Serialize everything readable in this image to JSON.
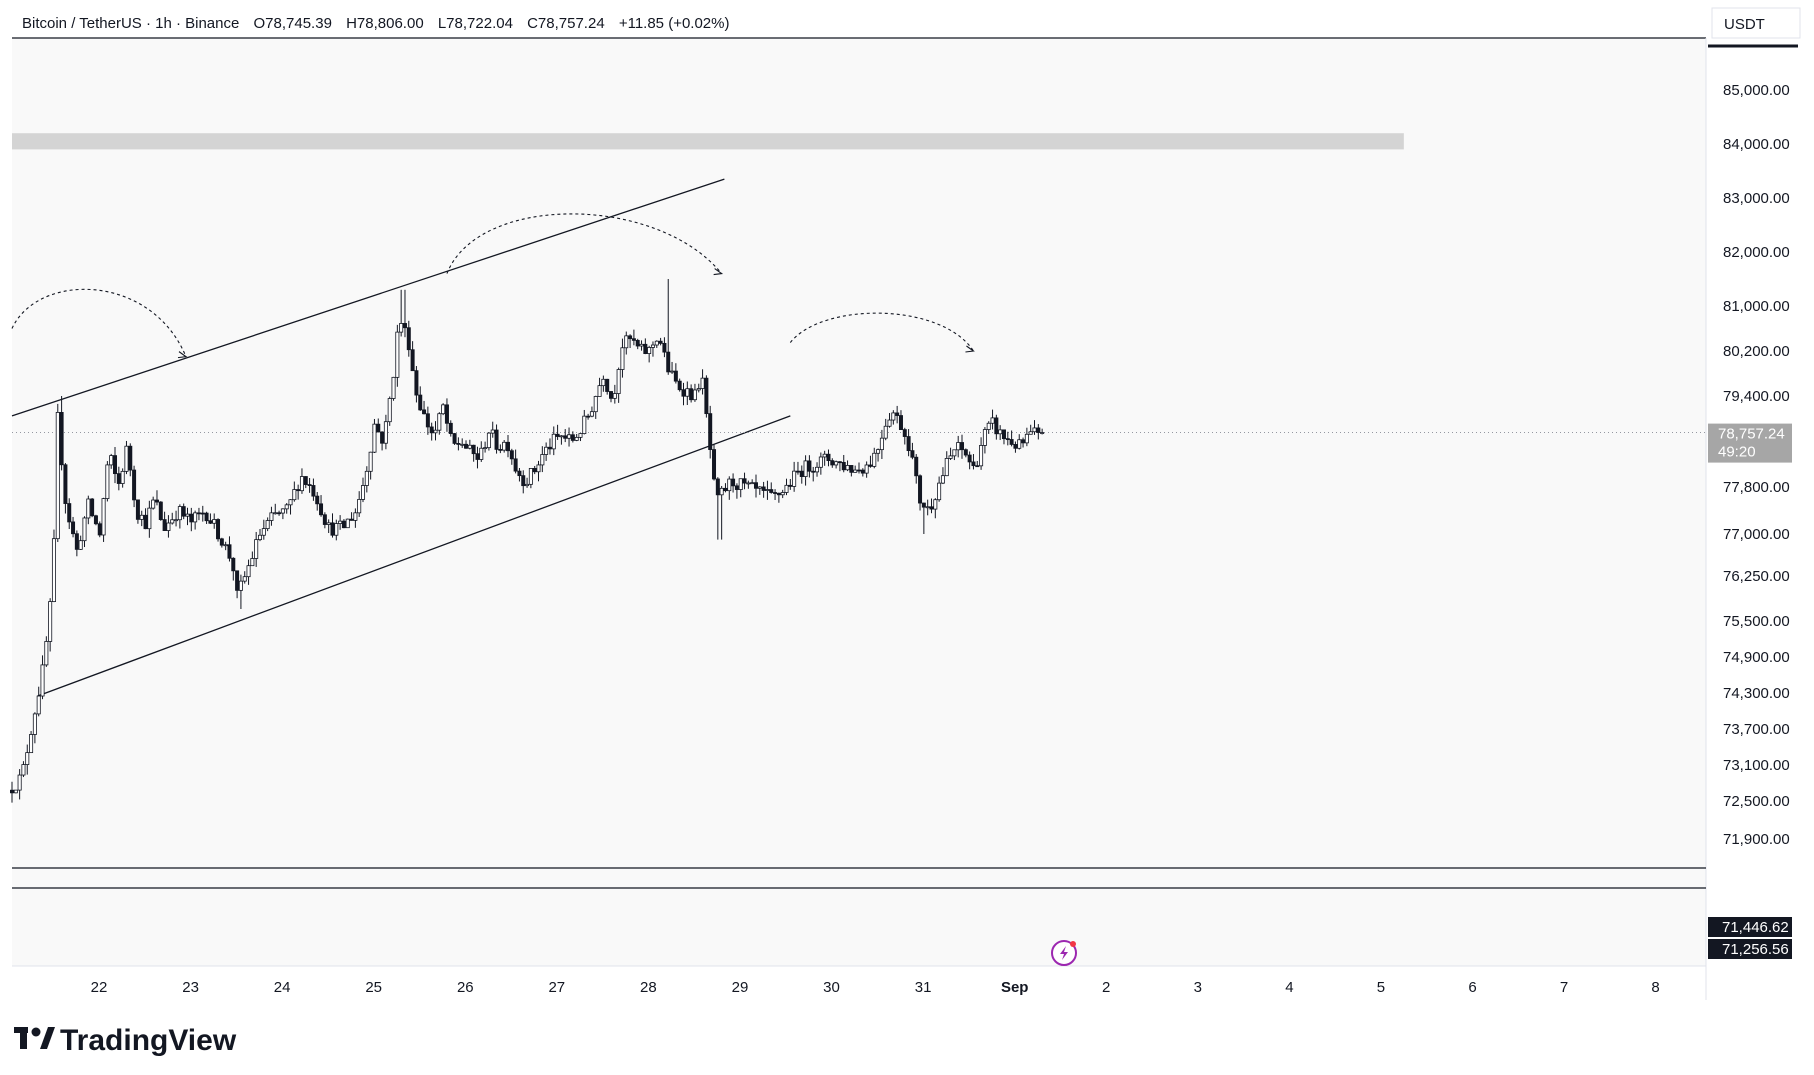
{
  "header": {
    "symbol": "Bitcoin / TetherUS · 1h · Binance",
    "open": "O78,745.39",
    "high": "H78,806.00",
    "low": "L78,722.04",
    "close": "C78,757.24",
    "change": "+11.85 (+0.02%)"
  },
  "price_axis": {
    "currency": "USDT",
    "current_price": "78,757.24",
    "countdown": "49:20",
    "tag_1": "71,446.62",
    "tag_2": "71,256.56"
  },
  "brand": {
    "name": "TradingView",
    "icon": "tradingview-logo-icon"
  },
  "colors": {
    "candle": "#131722",
    "zone": "#d4d4d4",
    "plot_bg": "#f9f9f9",
    "price_tag": "#a6a6a6",
    "level_tag": "#131722",
    "flash_icon": "#9c27b0"
  },
  "chart_data": {
    "type": "candlestick",
    "symbol": "BTCUSDT",
    "interval": "1h",
    "exchange": "Binance",
    "y_ticks": [
      85000,
      84000,
      83000,
      82000,
      81000,
      80200,
      79400,
      77800,
      77000,
      76250,
      75500,
      74900,
      74300,
      73700,
      73100,
      72500,
      71900
    ],
    "y_tick_labels": [
      "85,000.00",
      "84,000.00",
      "83,000.00",
      "82,000.00",
      "81,000.00",
      "80,200.00",
      "79,400.00",
      "77,800.00",
      "77,000.00",
      "76,250.00",
      "75,500.00",
      "74,900.00",
      "74,300.00",
      "73,700.00",
      "73,100.00",
      "72,500.00",
      "71,900.00"
    ],
    "x_tick_labels": [
      "22",
      "23",
      "24",
      "25",
      "26",
      "27",
      "28",
      "29",
      "30",
      "31",
      "Sep",
      "2",
      "3",
      "4",
      "5",
      "6",
      "7",
      "8"
    ],
    "x_tick_days": [
      22,
      23,
      24,
      25,
      26,
      27,
      28,
      29,
      30,
      31,
      32,
      33,
      34,
      35,
      36,
      37,
      38,
      39
    ],
    "x_range_days": [
      21.05,
      39.55
    ],
    "y_range": [
      71250,
      85800
    ],
    "current_price": 78757.24,
    "horizontal_levels": [
      71446.62,
      71256.56
    ],
    "resistance_zone": {
      "low": 83900,
      "high": 84200,
      "from_day": 21.05,
      "to_day": 36.25
    },
    "channel": {
      "upper": [
        {
          "day": 21.05,
          "price": 79050
        },
        {
          "day": 28.83,
          "price": 83350
        }
      ],
      "lower": [
        {
          "day": 21.33,
          "price": 74250
        },
        {
          "day": 29.55,
          "price": 79050
        }
      ]
    },
    "arcs": [
      {
        "start": [
          21.05,
          80600
        ],
        "peak": [
          21.85,
          81550
        ],
        "end": [
          22.95,
          80100
        ]
      },
      {
        "start": [
          25.8,
          81600
        ],
        "peak": [
          26.77,
          83000
        ],
        "end": [
          28.8,
          81600
        ]
      },
      {
        "start": [
          29.55,
          80350
        ],
        "peak": [
          30.55,
          81000
        ],
        "end": [
          31.55,
          80200
        ]
      }
    ],
    "price_path": [
      [
        21.05,
        72680
      ],
      [
        21.2,
        72900
      ],
      [
        21.3,
        73700
      ],
      [
        21.42,
        74600
      ],
      [
        21.5,
        75500
      ],
      [
        21.55,
        76800
      ],
      [
        21.58,
        79200
      ],
      [
        21.68,
        77500
      ],
      [
        21.8,
        76700
      ],
      [
        21.92,
        77500
      ],
      [
        22.05,
        77000
      ],
      [
        22.15,
        78400
      ],
      [
        22.25,
        77800
      ],
      [
        22.35,
        78500
      ],
      [
        22.45,
        77400
      ],
      [
        22.55,
        77200
      ],
      [
        22.65,
        77600
      ],
      [
        22.75,
        77100
      ],
      [
        22.9,
        77400
      ],
      [
        23.05,
        77200
      ],
      [
        23.2,
        77400
      ],
      [
        23.35,
        77000
      ],
      [
        23.5,
        76500
      ],
      [
        23.55,
        75900
      ],
      [
        23.65,
        76300
      ],
      [
        23.8,
        77000
      ],
      [
        23.95,
        77300
      ],
      [
        24.1,
        77400
      ],
      [
        24.25,
        78000
      ],
      [
        24.4,
        77700
      ],
      [
        24.55,
        77100
      ],
      [
        24.7,
        77100
      ],
      [
        24.85,
        77400
      ],
      [
        24.95,
        78000
      ],
      [
        25.05,
        78900
      ],
      [
        25.15,
        78600
      ],
      [
        25.25,
        79700
      ],
      [
        25.32,
        80800
      ],
      [
        25.42,
        80400
      ],
      [
        25.5,
        79500
      ],
      [
        25.6,
        79000
      ],
      [
        25.7,
        78700
      ],
      [
        25.8,
        79200
      ],
      [
        25.9,
        78500
      ],
      [
        26.0,
        78600
      ],
      [
        26.1,
        78400
      ],
      [
        26.2,
        78300
      ],
      [
        26.3,
        78800
      ],
      [
        26.4,
        78500
      ],
      [
        26.5,
        78600
      ],
      [
        26.6,
        78100
      ],
      [
        26.7,
        77900
      ],
      [
        26.8,
        78100
      ],
      [
        26.9,
        78400
      ],
      [
        27.0,
        78600
      ],
      [
        27.1,
        78700
      ],
      [
        27.2,
        78600
      ],
      [
        27.3,
        78800
      ],
      [
        27.4,
        79100
      ],
      [
        27.55,
        79800
      ],
      [
        27.65,
        79300
      ],
      [
        27.75,
        80300
      ],
      [
        27.85,
        80400
      ],
      [
        27.95,
        80200
      ],
      [
        28.05,
        80200
      ],
      [
        28.15,
        80500
      ],
      [
        28.25,
        79900
      ],
      [
        28.35,
        79600
      ],
      [
        28.45,
        79500
      ],
      [
        28.55,
        79400
      ],
      [
        28.62,
        79800
      ],
      [
        28.72,
        78400
      ],
      [
        28.78,
        77500
      ],
      [
        28.85,
        77700
      ],
      [
        28.95,
        77900
      ],
      [
        29.1,
        77800
      ],
      [
        29.25,
        77700
      ],
      [
        29.4,
        77600
      ],
      [
        29.55,
        77800
      ],
      [
        29.7,
        78100
      ],
      [
        29.85,
        78200
      ],
      [
        30.0,
        78300
      ],
      [
        30.15,
        78200
      ],
      [
        30.3,
        78100
      ],
      [
        30.45,
        78200
      ],
      [
        30.55,
        78500
      ],
      [
        30.62,
        78900
      ],
      [
        30.7,
        79150
      ],
      [
        30.8,
        78900
      ],
      [
        30.9,
        78500
      ],
      [
        31.0,
        77600
      ],
      [
        31.1,
        77400
      ],
      [
        31.2,
        77800
      ],
      [
        31.3,
        78200
      ],
      [
        31.4,
        78500
      ],
      [
        31.5,
        78400
      ],
      [
        31.6,
        78100
      ],
      [
        31.7,
        78700
      ],
      [
        31.8,
        78900
      ],
      [
        31.9,
        78700
      ],
      [
        32.0,
        78600
      ],
      [
        32.1,
        78500
      ],
      [
        32.2,
        78700
      ],
      [
        32.3,
        78757
      ]
    ]
  }
}
